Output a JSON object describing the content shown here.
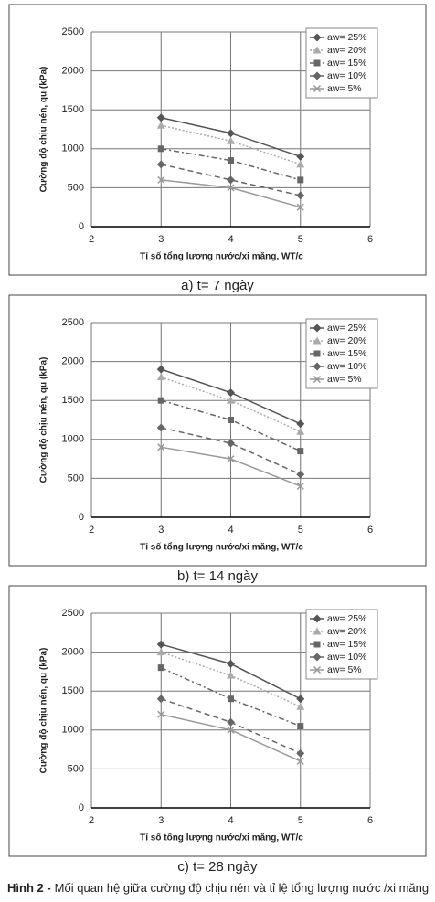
{
  "chart_data": [
    {
      "type": "line",
      "caption": "a) t= 7 ngày",
      "ylabel": "Cường độ chịu nén, qu (kPa)",
      "xlabel": "Tỉ số tổng lượng nước/xi măng, WT/c",
      "x": [
        3,
        4,
        5
      ],
      "xlim": [
        2,
        6
      ],
      "xticks": [
        2,
        3,
        4,
        5,
        6
      ],
      "ylim": [
        0,
        2500
      ],
      "yticks": [
        0,
        500,
        1000,
        1500,
        2000,
        2500
      ],
      "grid": true,
      "legend": "upper right",
      "series": [
        {
          "name": "aw= 25%",
          "color": "#555555",
          "marker": "diamond",
          "dash": "solid",
          "values": [
            1400,
            1200,
            900
          ]
        },
        {
          "name": "aw= 20%",
          "color": "#aaaaaa",
          "marker": "triangle",
          "dash": "dotted",
          "values": [
            1300,
            1100,
            800
          ]
        },
        {
          "name": "aw= 15%",
          "color": "#666666",
          "marker": "square",
          "dash": "dashdot",
          "values": [
            1000,
            850,
            600
          ]
        },
        {
          "name": "aw= 10%",
          "color": "#666666",
          "marker": "diamond",
          "dash": "dashed",
          "values": [
            800,
            600,
            400
          ]
        },
        {
          "name": "aw= 5%",
          "color": "#999999",
          "marker": "x",
          "dash": "solid",
          "values": [
            600,
            500,
            250
          ]
        }
      ]
    },
    {
      "type": "line",
      "caption": "b) t= 14 ngày",
      "ylabel": "Cường độ chịu nén, qu (kPa)",
      "xlabel": "Tỉ số tổng lượng nước/xi măng, WT/c",
      "x": [
        3,
        4,
        5
      ],
      "xlim": [
        2,
        6
      ],
      "xticks": [
        2,
        3,
        4,
        5,
        6
      ],
      "ylim": [
        0,
        2500
      ],
      "yticks": [
        0,
        500,
        1000,
        1500,
        2000,
        2500
      ],
      "grid": true,
      "legend": "upper right",
      "series": [
        {
          "name": "aw= 25%",
          "color": "#555555",
          "marker": "diamond",
          "dash": "solid",
          "values": [
            1900,
            1600,
            1200
          ]
        },
        {
          "name": "aw= 20%",
          "color": "#aaaaaa",
          "marker": "triangle",
          "dash": "dotted",
          "values": [
            1800,
            1500,
            1100
          ]
        },
        {
          "name": "aw= 15%",
          "color": "#666666",
          "marker": "square",
          "dash": "dashdot",
          "values": [
            1500,
            1250,
            850
          ]
        },
        {
          "name": "aw= 10%",
          "color": "#666666",
          "marker": "diamond",
          "dash": "dashed",
          "values": [
            1150,
            950,
            550
          ]
        },
        {
          "name": "aw= 5%",
          "color": "#999999",
          "marker": "x",
          "dash": "solid",
          "values": [
            900,
            750,
            400
          ]
        }
      ]
    },
    {
      "type": "line",
      "caption": "c) t= 28 ngày",
      "ylabel": "Cường độ chịu nén, qu (kPa)",
      "xlabel": "Tỉ số tổng lượng nước/xi măng, WT/c",
      "x": [
        3,
        4,
        5
      ],
      "xlim": [
        2,
        6
      ],
      "xticks": [
        2,
        3,
        4,
        5,
        6
      ],
      "ylim": [
        0,
        2500
      ],
      "yticks": [
        0,
        500,
        1000,
        1500,
        2000,
        2500
      ],
      "grid": true,
      "legend": "upper right",
      "series": [
        {
          "name": "aw= 25%",
          "color": "#555555",
          "marker": "diamond",
          "dash": "solid",
          "values": [
            2100,
            1850,
            1400
          ]
        },
        {
          "name": "aw= 20%",
          "color": "#aaaaaa",
          "marker": "triangle",
          "dash": "dotted",
          "values": [
            2000,
            1700,
            1300
          ]
        },
        {
          "name": "aw= 15%",
          "color": "#666666",
          "marker": "square",
          "dash": "dashdot",
          "values": [
            1800,
            1400,
            1050
          ]
        },
        {
          "name": "aw= 10%",
          "color": "#666666",
          "marker": "diamond",
          "dash": "dashed",
          "values": [
            1400,
            1100,
            700
          ]
        },
        {
          "name": "aw= 5%",
          "color": "#999999",
          "marker": "x",
          "dash": "solid",
          "values": [
            1200,
            1000,
            600
          ]
        }
      ]
    }
  ],
  "figure_label": "Hình 2 -",
  "figure_caption": "Mối quan hệ giữa cường độ chịu nén và tỉ lệ tổng lượng nước /xi măng"
}
